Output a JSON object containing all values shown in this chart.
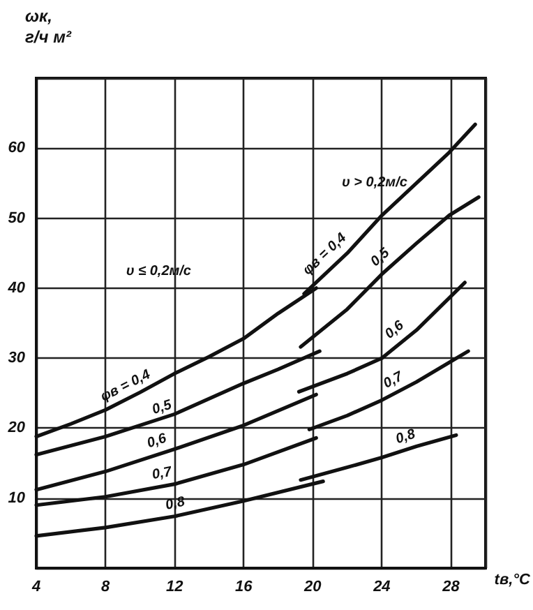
{
  "chart_data": {
    "type": "line",
    "xlabel": "tв,°C",
    "ylabel": "ωк, г/ч м²",
    "xlim": [
      4,
      30
    ],
    "xticks": [
      4,
      8,
      12,
      16,
      20,
      24,
      28
    ],
    "ylim": [
      0,
      70
    ],
    "yticks": [
      10,
      20,
      30,
      40,
      50,
      60
    ],
    "grid": true,
    "marker": "none",
    "line_style": "solid",
    "series": [
      {
        "color": "#111111",
        "x": [
          4,
          6,
          8,
          10,
          12,
          14,
          16,
          18,
          20.2
        ],
        "values": [
          18.8,
          20.6,
          22.6,
          25.1,
          27.8,
          30.2,
          32.8,
          36.4,
          40
        ]
      },
      {
        "color": "#111111",
        "x": [
          4,
          8,
          12,
          16,
          18,
          20.4
        ],
        "values": [
          16.2,
          18.8,
          22,
          26.4,
          28.4,
          31
        ]
      },
      {
        "color": "#111111",
        "x": [
          4,
          8,
          12,
          16,
          20.2
        ],
        "values": [
          11.2,
          13.8,
          17,
          20.4,
          24.8
        ]
      },
      {
        "color": "#111111",
        "x": [
          4,
          8,
          12,
          16,
          20.2
        ],
        "values": [
          9,
          10.2,
          12,
          14.8,
          18.6
        ]
      },
      {
        "color": "#111111",
        "x": [
          4,
          8,
          12,
          16,
          20.6
        ],
        "values": [
          4.6,
          5.8,
          7.4,
          9.6,
          12.4
        ]
      },
      {
        "color": "#111111",
        "x": [
          19.5,
          22,
          24,
          26,
          27.9,
          29.4
        ],
        "values": [
          39.2,
          45,
          50.4,
          55,
          59.4,
          63.4
        ]
      },
      {
        "color": "#111111",
        "x": [
          19.3,
          22,
          24,
          26,
          27.9,
          29.6
        ],
        "values": [
          31.6,
          37,
          42,
          46.4,
          50.4,
          53
        ]
      },
      {
        "color": "#111111",
        "x": [
          19.2,
          22,
          24,
          26,
          28.8
        ],
        "values": [
          25.2,
          27.8,
          30,
          34,
          40.8
        ]
      },
      {
        "color": "#111111",
        "x": [
          19.8,
          22,
          24,
          26,
          29
        ],
        "values": [
          19.8,
          21.8,
          24,
          26.6,
          31
        ]
      },
      {
        "color": "#111111",
        "x": [
          19.3,
          22,
          24,
          26,
          28.3
        ],
        "values": [
          12.6,
          14.4,
          15.8,
          17.4,
          19
        ]
      }
    ],
    "annotations": [
      "υ ≤ 0,2м/с",
      {
        "text": "φв = 0,4",
        "x": 9.5,
        "y": 24.4
      },
      {
        "text": "0,5",
        "x": 11.5,
        "y": 21.2
      },
      {
        "text": "0,6",
        "x": 11.2,
        "y": 16.4
      },
      {
        "text": "0,7",
        "x": 11.4,
        "y": 11.7
      },
      {
        "text": "0,8",
        "x": 12.2,
        "y": 7.4
      },
      "υ > 0,2м/с",
      {
        "text": "φв = 0,4",
        "x": 21.2,
        "y": 43.5
      },
      {
        "text": "0,5",
        "x": 24.4,
        "y": 43
      },
      {
        "text": "0,6",
        "x": 25.2,
        "y": 32.6
      },
      {
        "text": "0,7",
        "x": 25,
        "y": 25.2
      },
      {
        "text": "0,8",
        "x": 25.6,
        "y": 17
      }
    ]
  }
}
